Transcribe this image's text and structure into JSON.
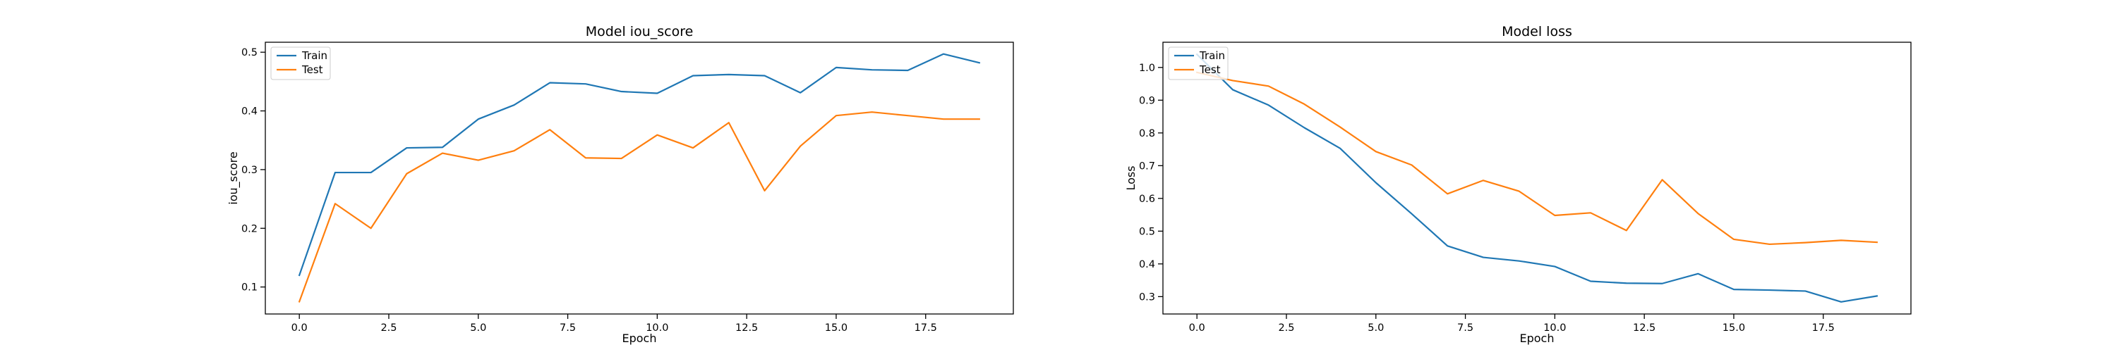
{
  "chart_data": [
    {
      "type": "line",
      "title": "Model iou_score",
      "xlabel": "Epoch",
      "ylabel": "iou_score",
      "x": [
        0,
        1,
        2,
        3,
        4,
        5,
        6,
        7,
        8,
        9,
        10,
        11,
        12,
        13,
        14,
        15,
        16,
        17,
        18,
        19
      ],
      "series": [
        {
          "name": "Train",
          "color": "#1f77b4",
          "values": [
            0.12,
            0.295,
            0.295,
            0.337,
            0.338,
            0.386,
            0.41,
            0.448,
            0.446,
            0.433,
            0.43,
            0.46,
            0.462,
            0.46,
            0.431,
            0.474,
            0.47,
            0.469,
            0.497,
            0.482
          ]
        },
        {
          "name": "Test",
          "color": "#ff7f0e",
          "values": [
            0.075,
            0.242,
            0.2,
            0.293,
            0.328,
            0.316,
            0.332,
            0.368,
            0.32,
            0.319,
            0.359,
            0.337,
            0.38,
            0.264,
            0.34,
            0.392,
            0.398,
            0.392,
            0.386,
            0.386
          ]
        }
      ],
      "xlim": [
        -0.95,
        19.95
      ],
      "ylim": [
        0.054,
        0.517
      ],
      "xticks": [
        0.0,
        2.5,
        5.0,
        7.5,
        10.0,
        12.5,
        15.0,
        17.5
      ],
      "xtick_labels": [
        "0.0",
        "2.5",
        "5.0",
        "7.5",
        "10.0",
        "12.5",
        "15.0",
        "17.5"
      ],
      "yticks": [
        0.1,
        0.2,
        0.3,
        0.4,
        0.5
      ],
      "ytick_labels": [
        "0.1",
        "0.2",
        "0.3",
        "0.4",
        "0.5"
      ],
      "grid": false,
      "legend": "upper-left"
    },
    {
      "type": "line",
      "title": "Model loss",
      "xlabel": "Epoch",
      "ylabel": "Loss",
      "x": [
        0,
        1,
        2,
        3,
        4,
        5,
        6,
        7,
        8,
        9,
        10,
        11,
        12,
        13,
        14,
        15,
        16,
        17,
        18,
        19
      ],
      "series": [
        {
          "name": "Train",
          "color": "#1f77b4",
          "values": [
            1.04,
            0.932,
            0.885,
            0.816,
            0.753,
            0.648,
            0.553,
            0.455,
            0.42,
            0.409,
            0.392,
            0.347,
            0.341,
            0.34,
            0.37,
            0.322,
            0.32,
            0.317,
            0.284,
            0.302
          ]
        },
        {
          "name": "Test",
          "color": "#ff7f0e",
          "values": [
            0.985,
            0.96,
            0.943,
            0.888,
            0.818,
            0.743,
            0.702,
            0.614,
            0.655,
            0.622,
            0.548,
            0.556,
            0.502,
            0.657,
            0.554,
            0.475,
            0.46,
            0.465,
            0.472,
            0.466
          ]
        }
      ],
      "xlim": [
        -0.95,
        19.95
      ],
      "ylim": [
        0.247,
        1.077
      ],
      "xticks": [
        0.0,
        2.5,
        5.0,
        7.5,
        10.0,
        12.5,
        15.0,
        17.5
      ],
      "xtick_labels": [
        "0.0",
        "2.5",
        "5.0",
        "7.5",
        "10.0",
        "12.5",
        "15.0",
        "17.5"
      ],
      "yticks": [
        0.3,
        0.4,
        0.5,
        0.6,
        0.7,
        0.8,
        0.9,
        1.0
      ],
      "ytick_labels": [
        "0.3",
        "0.4",
        "0.5",
        "0.6",
        "0.7",
        "0.8",
        "0.9",
        "1.0"
      ],
      "grid": false,
      "legend": "upper-left"
    }
  ]
}
